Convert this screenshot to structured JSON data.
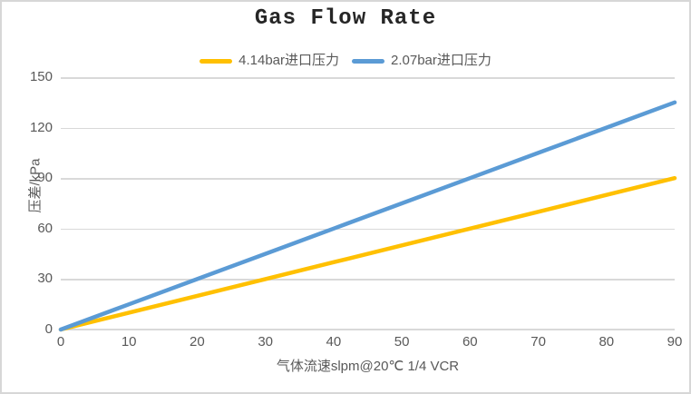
{
  "title": "Gas Flow Rate",
  "legend": {
    "items": [
      {
        "label": "4.14bar进口压力",
        "color": "#FFC000"
      },
      {
        "label": "2.07bar进口压力",
        "color": "#5B9BD5"
      }
    ],
    "position": "top-center"
  },
  "colors": {
    "series_yellow": "#FFC000",
    "series_blue": "#5B9BD5",
    "gridline": "#D9D9D9",
    "tick_text": "#595959",
    "title_text": "#262626",
    "frame_border": "#D7D7D7"
  },
  "chart_data": {
    "type": "line",
    "title": "Gas Flow Rate",
    "xlabel": "气体流速slpm@20℃ 1/4 VCR",
    "ylabel": "压差/kPa",
    "xlim": [
      0,
      90
    ],
    "ylim": [
      0,
      150
    ],
    "grid": "horizontal",
    "legend_position": "top",
    "x_ticks": [
      "0",
      "10",
      "20",
      "30",
      "40",
      "50",
      "60",
      "70",
      "80",
      "90"
    ],
    "y_ticks": [
      "0",
      "30",
      "60",
      "90",
      "120",
      "150"
    ],
    "x": [
      0,
      10,
      20,
      30,
      40,
      50,
      60,
      70,
      80,
      90
    ],
    "series": [
      {
        "name": "4.14bar进口压力",
        "color": "#FFC000",
        "values": [
          0,
          10,
          20,
          30,
          40,
          50,
          60,
          70,
          80,
          90
        ]
      },
      {
        "name": "2.07bar进口压力",
        "color": "#5B9BD5",
        "values": [
          0,
          15,
          30,
          45,
          60,
          75,
          90,
          105,
          120,
          135
        ]
      }
    ]
  }
}
